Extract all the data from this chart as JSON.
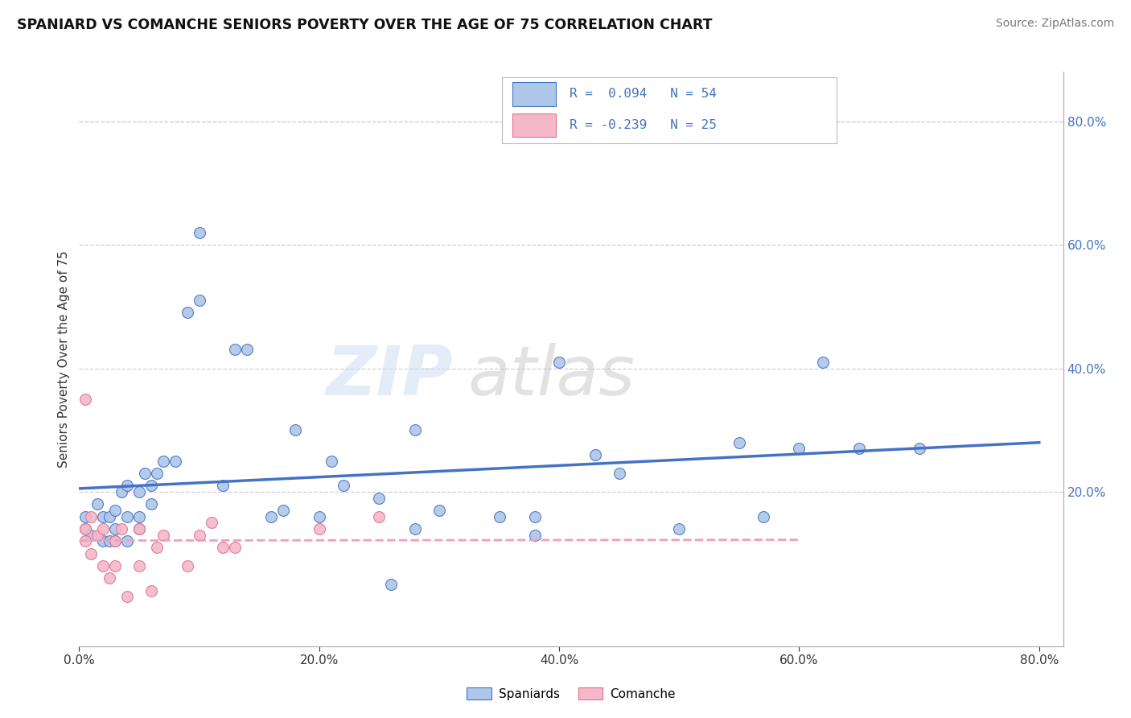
{
  "title": "SPANIARD VS COMANCHE SENIORS POVERTY OVER THE AGE OF 75 CORRELATION CHART",
  "source": "Source: ZipAtlas.com",
  "ylabel": "Seniors Poverty Over the Age of 75",
  "xlim": [
    0.0,
    0.82
  ],
  "ylim": [
    -0.05,
    0.88
  ],
  "xticks": [
    0.0,
    0.2,
    0.4,
    0.6,
    0.8
  ],
  "xticklabels": [
    "0.0%",
    "20.0%",
    "40.0%",
    "60.0%",
    "80.0%"
  ],
  "yticks_right": [
    0.2,
    0.4,
    0.6,
    0.8
  ],
  "yticklabels_right": [
    "20.0%",
    "40.0%",
    "60.0%",
    "80.0%"
  ],
  "spaniard_color": "#aec6e8",
  "comanche_color": "#f4b8c8",
  "spaniard_edge_color": "#4472c4",
  "comanche_edge_color": "#e07090",
  "spaniard_line_color": "#4472c4",
  "comanche_line_color": "#f0a0b8",
  "legend_text_color": "#4472c4",
  "background_color": "#ffffff",
  "grid_color": "#d0d0d0",
  "spaniard_x": [
    0.005,
    0.005,
    0.01,
    0.015,
    0.02,
    0.02,
    0.025,
    0.025,
    0.03,
    0.03,
    0.03,
    0.035,
    0.04,
    0.04,
    0.04,
    0.05,
    0.05,
    0.05,
    0.055,
    0.06,
    0.06,
    0.065,
    0.07,
    0.08,
    0.09,
    0.1,
    0.1,
    0.12,
    0.13,
    0.14,
    0.16,
    0.17,
    0.18,
    0.2,
    0.21,
    0.22,
    0.25,
    0.26,
    0.28,
    0.3,
    0.35,
    0.38,
    0.4,
    0.45,
    0.5,
    0.55,
    0.57,
    0.6,
    0.62,
    0.65,
    0.7,
    0.38,
    0.43,
    0.28
  ],
  "spaniard_y": [
    0.14,
    0.16,
    0.13,
    0.18,
    0.12,
    0.16,
    0.12,
    0.16,
    0.12,
    0.14,
    0.17,
    0.2,
    0.12,
    0.16,
    0.21,
    0.14,
    0.16,
    0.2,
    0.23,
    0.18,
    0.21,
    0.23,
    0.25,
    0.25,
    0.49,
    0.51,
    0.62,
    0.21,
    0.43,
    0.43,
    0.16,
    0.17,
    0.3,
    0.16,
    0.25,
    0.21,
    0.19,
    0.05,
    0.3,
    0.17,
    0.16,
    0.13,
    0.41,
    0.23,
    0.14,
    0.28,
    0.16,
    0.27,
    0.41,
    0.27,
    0.27,
    0.16,
    0.26,
    0.14
  ],
  "comanche_x": [
    0.005,
    0.005,
    0.005,
    0.01,
    0.01,
    0.015,
    0.02,
    0.02,
    0.025,
    0.03,
    0.03,
    0.035,
    0.04,
    0.05,
    0.05,
    0.06,
    0.065,
    0.07,
    0.09,
    0.1,
    0.11,
    0.12,
    0.13,
    0.2,
    0.25
  ],
  "comanche_y": [
    0.12,
    0.14,
    0.35,
    0.1,
    0.16,
    0.13,
    0.08,
    0.14,
    0.06,
    0.08,
    0.12,
    0.14,
    0.03,
    0.08,
    0.14,
    0.04,
    0.11,
    0.13,
    0.08,
    0.13,
    0.15,
    0.11,
    0.11,
    0.14,
    0.16
  ]
}
